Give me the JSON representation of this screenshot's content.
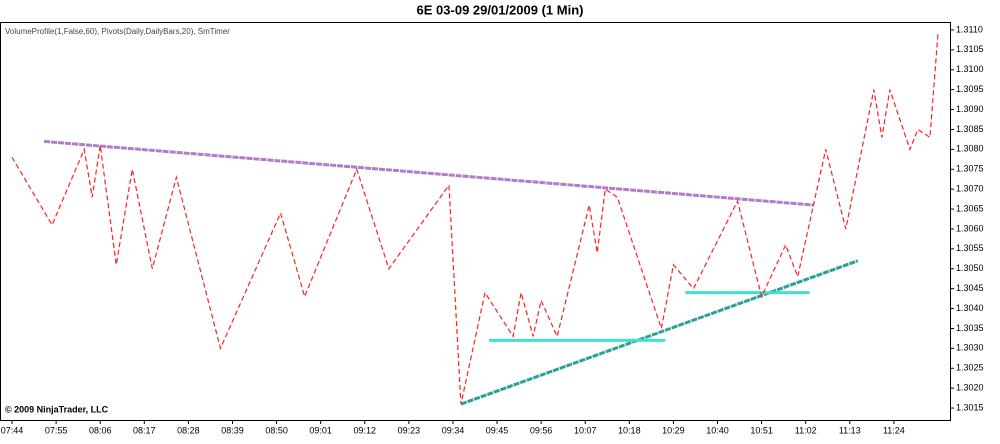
{
  "chart_data": {
    "type": "line",
    "title": "6E 03-09  29/01/2009 (1 Min)",
    "subtitle": "VolumeProfile(1,False,60), Pivots(Daily,DailyBars,20), SmTimer",
    "copyright": "© 2009 NinjaTrader, LLC",
    "x": [
      "07:44",
      "07:54",
      "08:02",
      "08:04",
      "08:06",
      "08:10",
      "08:14",
      "08:19",
      "08:25",
      "08:36",
      "08:51",
      "08:57",
      "09:10",
      "09:18",
      "09:33",
      "09:36",
      "09:42",
      "09:49",
      "09:51",
      "09:54",
      "09:56",
      "10:00",
      "10:08",
      "10:10",
      "10:12",
      "10:15",
      "10:26",
      "10:29",
      "10:34",
      "10:45",
      "10:51",
      "10:57",
      "11:00",
      "11:07",
      "11:12",
      "11:19",
      "11:21",
      "11:23",
      "11:28",
      "11:30",
      "11:33",
      "11:35"
    ],
    "series": [
      {
        "color": "#ff2020",
        "values": [
          1.3078,
          1.3061,
          1.308,
          1.3068,
          1.3081,
          1.3051,
          1.3075,
          1.305,
          1.3073,
          1.303,
          1.3064,
          1.3043,
          1.3075,
          1.305,
          1.3071,
          1.3016,
          1.3044,
          1.3033,
          1.3044,
          1.3033,
          1.3042,
          1.3033,
          1.3066,
          1.3054,
          1.307,
          1.3068,
          1.3035,
          1.3051,
          1.3045,
          1.3067,
          1.3043,
          1.3056,
          1.3048,
          1.308,
          1.306,
          1.3095,
          1.3083,
          1.3095,
          1.308,
          1.3085,
          1.3083,
          1.3109
        ]
      }
    ],
    "trendlines": [
      {
        "color": "#b07cc6",
        "x": [
          "07:52",
          "11:04"
        ],
        "y": [
          1.3082,
          1.3066
        ]
      },
      {
        "color": "#2aa198",
        "x": [
          "09:36",
          "11:15"
        ],
        "y": [
          1.3016,
          1.3052
        ]
      }
    ],
    "levels": [
      {
        "color": "#40e0d0",
        "x": [
          "09:43",
          "10:27"
        ],
        "y": 1.3032
      },
      {
        "color": "#40e0d0",
        "x": [
          "10:32",
          "11:03"
        ],
        "y": 1.3044
      }
    ],
    "xlim": [
      "07:41",
      "11:38"
    ],
    "xticks": [
      "07:44",
      "07:55",
      "08:06",
      "08:17",
      "08:28",
      "08:39",
      "08:50",
      "09:01",
      "09:12",
      "09:23",
      "09:34",
      "09:45",
      "09:56",
      "10:07",
      "10:18",
      "10:29",
      "10:40",
      "10:51",
      "11:02",
      "11:13",
      "11:24"
    ],
    "ylim": [
      1.3012,
      1.3112
    ],
    "yticks": [
      {
        "value": 1.311,
        "label": "1.3110"
      },
      1.3105,
      {
        "value": 1.31,
        "label": "1.3100"
      },
      1.3095,
      {
        "value": 1.309,
        "label": "1.3090"
      },
      1.3085,
      {
        "value": 1.308,
        "label": "1.3080"
      },
      1.3075,
      {
        "value": 1.307,
        "label": "1.3070"
      },
      1.3065,
      {
        "value": 1.306,
        "label": "1.3060"
      },
      1.3055,
      {
        "value": 1.305,
        "label": "1.3050"
      },
      1.3045,
      {
        "value": 1.304,
        "label": "1.3040"
      },
      1.3035,
      {
        "value": 1.303,
        "label": "1.3030"
      },
      1.3025,
      {
        "value": 1.302,
        "label": "1.3020"
      },
      1.3015
    ]
  }
}
